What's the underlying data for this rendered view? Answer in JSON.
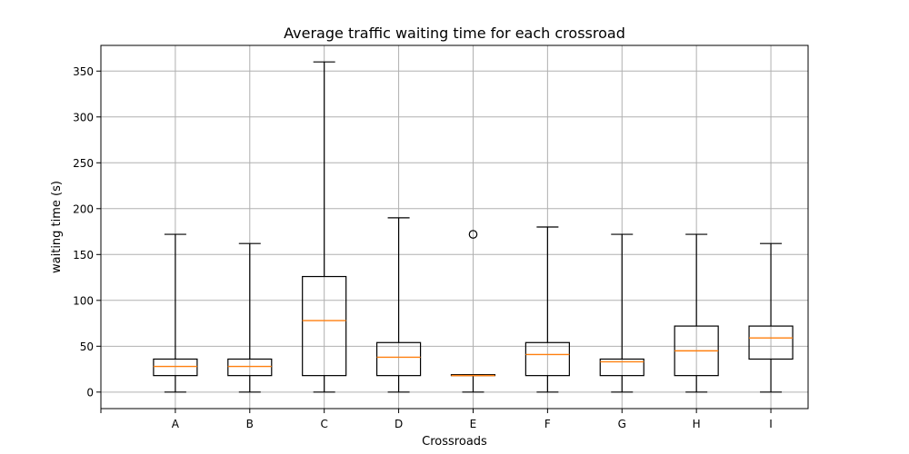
{
  "chart_data": {
    "type": "box",
    "title": "Average traffic waiting time for each crossroad",
    "xlabel": "Crossroads",
    "ylabel": "waiting time (s)",
    "ylim": [
      -18,
      378
    ],
    "yticks": [
      0,
      50,
      100,
      150,
      200,
      250,
      300,
      350
    ],
    "categories": [
      "A",
      "B",
      "C",
      "D",
      "E",
      "F",
      "G",
      "H",
      "I"
    ],
    "grid": true,
    "boxes": [
      {
        "category": "A",
        "whisker_low": 0,
        "q1": 18,
        "median": 28,
        "q3": 36,
        "whisker_high": 172,
        "outliers": []
      },
      {
        "category": "B",
        "whisker_low": 0,
        "q1": 18,
        "median": 28,
        "q3": 36,
        "whisker_high": 162,
        "outliers": []
      },
      {
        "category": "C",
        "whisker_low": 0,
        "q1": 18,
        "median": 78,
        "q3": 126,
        "whisker_high": 360,
        "outliers": []
      },
      {
        "category": "D",
        "whisker_low": 0,
        "q1": 18,
        "median": 38,
        "q3": 54,
        "whisker_high": 190,
        "outliers": []
      },
      {
        "category": "E",
        "whisker_low": 0,
        "q1": 18,
        "median": 18,
        "q3": 19,
        "whisker_high": 19,
        "outliers": [
          172
        ]
      },
      {
        "category": "F",
        "whisker_low": 0,
        "q1": 18,
        "median": 41,
        "q3": 54,
        "whisker_high": 180,
        "outliers": []
      },
      {
        "category": "G",
        "whisker_low": 0,
        "q1": 18,
        "median": 33,
        "q3": 36,
        "whisker_high": 172,
        "outliers": []
      },
      {
        "category": "H",
        "whisker_low": 0,
        "q1": 18,
        "median": 45,
        "q3": 72,
        "whisker_high": 172,
        "outliers": []
      },
      {
        "category": "I",
        "whisker_low": 0,
        "q1": 36,
        "median": 59,
        "q3": 72,
        "whisker_high": 162,
        "outliers": []
      }
    ],
    "colors": {
      "box": "#000000",
      "median": "#ff7f0e",
      "grid": "#b0b0b0",
      "axis": "#000000"
    }
  }
}
